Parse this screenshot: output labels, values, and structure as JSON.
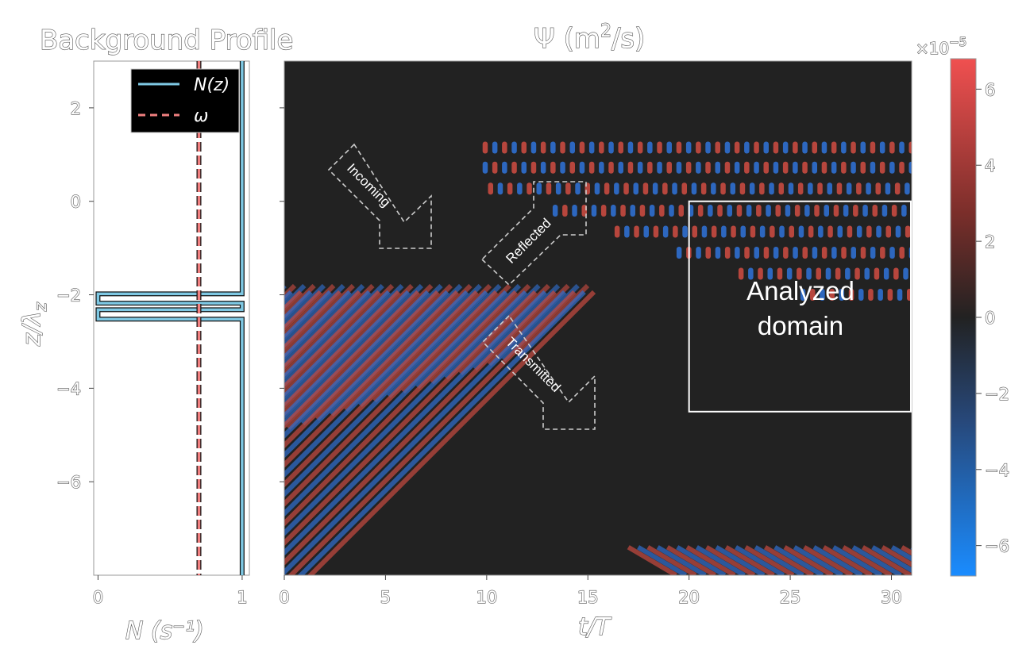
{
  "chart_data": [
    {
      "type": "line",
      "title": "Background Profile",
      "xlabel": "N (s⁻¹)",
      "ylabel": "z/λ",
      "ylabel_sub": "z",
      "xlim": [
        -0.03,
        1.05
      ],
      "ylim": [
        -8,
        3
      ],
      "xticks": [
        0,
        1
      ],
      "xtick_labels": [
        "0",
        "1"
      ],
      "yticks": [
        2,
        0,
        -2,
        -4,
        -6
      ],
      "ytick_labels": [
        "2",
        "0",
        "−2",
        "−4",
        "−6"
      ],
      "legend": {
        "position": "top-right",
        "entries": [
          {
            "label": "N(z)",
            "color": "#7ec8e3",
            "style": "solid"
          },
          {
            "label": "ω",
            "color": "#f08080",
            "style": "dashed"
          }
        ]
      },
      "series": [
        {
          "name": "N(z)",
          "color": "#7ec8e3",
          "points": [
            [
              1,
              3
            ],
            [
              1,
              -1.98
            ],
            [
              0,
              -1.98
            ],
            [
              0,
              -2.18
            ],
            [
              1,
              -2.18
            ],
            [
              1,
              -2.32
            ],
            [
              0,
              -2.32
            ],
            [
              0,
              -2.52
            ],
            [
              1,
              -2.52
            ],
            [
              1,
              -8
            ]
          ]
        },
        {
          "name": "ω",
          "color": "#f08080",
          "style": "dashed",
          "points": [
            [
              0.7,
              3
            ],
            [
              0.7,
              -8
            ]
          ]
        }
      ]
    },
    {
      "type": "heatmap",
      "title": "Ψ (m²/s)",
      "title_base": "Ψ (m",
      "title_sup": "2",
      "title_end": "/s)",
      "xlabel": "t/T",
      "xlim": [
        0,
        31
      ],
      "ylim": [
        -8,
        3
      ],
      "xticks": [
        0,
        5,
        10,
        15,
        20,
        25,
        30
      ],
      "xtick_labels": [
        "0",
        "5",
        "10",
        "15",
        "20",
        "25",
        "30"
      ],
      "yticks": [
        2,
        0,
        -2,
        -4,
        -6
      ],
      "colormap": "diverging blue-black-red",
      "annotations": {
        "incoming": "Incoming",
        "reflected": "Reflected",
        "transmitted": "Transmitted",
        "domain_line1": "Analyzed",
        "domain_line2": "domain"
      },
      "analyzed_domain": {
        "t_range": [
          20,
          31
        ],
        "z_range": [
          -4.5,
          0
        ]
      }
    },
    {
      "type": "colorbar",
      "multiplier_base": "×10",
      "multiplier_exp": "−5",
      "range": [
        -6.8,
        6.8
      ],
      "ticks": [
        6,
        4,
        2,
        0,
        -2,
        -4,
        -6
      ],
      "tick_labels": [
        "6",
        "4",
        "2",
        "0",
        "−2",
        "−4",
        "−6"
      ],
      "colors": {
        "negative": "#1a8cff",
        "zero": "#222222",
        "positive": "#f05050"
      }
    }
  ]
}
